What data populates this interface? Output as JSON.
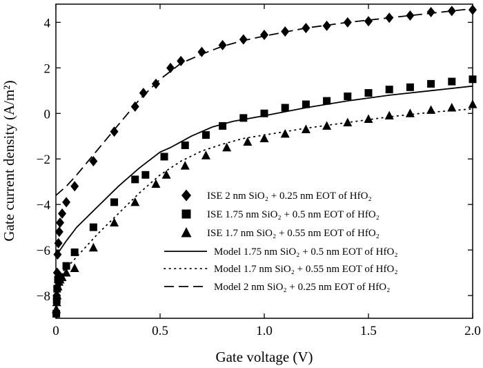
{
  "chart_data": {
    "type": "scatter",
    "xlabel": "Gate voltage (V)",
    "ylabel": "Gate current density (A/m²)",
    "xlim": [
      0,
      2.0
    ],
    "ylim": [
      -9,
      4.8
    ],
    "xticks": [
      0,
      0.5,
      1.0,
      1.5,
      2.0
    ],
    "xtick_labels": [
      "0",
      "0.5",
      "1.0",
      "1.5",
      "2.0"
    ],
    "yticks": [
      -8,
      -6,
      -4,
      -2,
      0,
      2,
      4
    ],
    "ytick_labels": [
      "−8",
      "−6",
      "−4",
      "−2",
      "0",
      "2",
      "4"
    ],
    "grid": false,
    "legend_position": "bottom-right",
    "series": [
      {
        "name": "ISE 2 nm SiO₂ + 0.25 nm EOT of HfO₂",
        "kind": "scatter",
        "marker": "diamond",
        "x": [
          0.002,
          0.004,
          0.006,
          0.008,
          0.012,
          0.016,
          0.02,
          0.03,
          0.05,
          0.09,
          0.18,
          0.28,
          0.38,
          0.42,
          0.48,
          0.55,
          0.6,
          0.7,
          0.8,
          0.9,
          1.0,
          1.1,
          1.2,
          1.3,
          1.4,
          1.5,
          1.6,
          1.7,
          1.8,
          1.9,
          2.0
        ],
        "y": [
          -8.8,
          -8.0,
          -7.0,
          -6.2,
          -5.7,
          -5.2,
          -4.8,
          -4.4,
          -3.9,
          -3.2,
          -2.1,
          -0.8,
          0.3,
          0.9,
          1.3,
          2.0,
          2.3,
          2.7,
          3.0,
          3.25,
          3.45,
          3.6,
          3.75,
          3.85,
          4.0,
          4.05,
          4.2,
          4.3,
          4.45,
          4.5,
          4.55
        ]
      },
      {
        "name": "ISE 1.75 nm SiO₂ + 0.5 nm EOT of HfO₂",
        "kind": "scatter",
        "marker": "square",
        "x": [
          0.002,
          0.004,
          0.006,
          0.01,
          0.015,
          0.02,
          0.05,
          0.09,
          0.18,
          0.28,
          0.38,
          0.43,
          0.52,
          0.62,
          0.72,
          0.8,
          0.9,
          1.0,
          1.1,
          1.2,
          1.3,
          1.4,
          1.5,
          1.6,
          1.7,
          1.8,
          1.9,
          2.0
        ],
        "y": [
          -8.8,
          -8.2,
          -7.7,
          -7.3,
          -7.2,
          -7.2,
          -6.7,
          -6.1,
          -5.0,
          -3.9,
          -2.9,
          -2.7,
          -1.9,
          -1.4,
          -0.95,
          -0.55,
          -0.2,
          0.0,
          0.25,
          0.4,
          0.55,
          0.75,
          0.9,
          1.05,
          1.15,
          1.3,
          1.4,
          1.5
        ]
      },
      {
        "name": "ISE 1.7 nm SiO₂ + 0.55 nm EOT of HfO₂",
        "kind": "scatter",
        "marker": "triangle",
        "x": [
          0.002,
          0.004,
          0.006,
          0.01,
          0.015,
          0.02,
          0.03,
          0.05,
          0.09,
          0.18,
          0.28,
          0.38,
          0.48,
          0.53,
          0.62,
          0.72,
          0.82,
          0.92,
          1.0,
          1.1,
          1.2,
          1.3,
          1.4,
          1.5,
          1.6,
          1.7,
          1.8,
          1.9,
          2.0
        ],
        "y": [
          -8.6,
          -8.3,
          -8.0,
          -7.6,
          -7.4,
          -7.3,
          -7.2,
          -7.0,
          -6.8,
          -5.9,
          -4.8,
          -3.9,
          -3.1,
          -2.7,
          -2.3,
          -1.85,
          -1.5,
          -1.25,
          -1.1,
          -0.9,
          -0.7,
          -0.55,
          -0.4,
          -0.25,
          -0.1,
          0.0,
          0.15,
          0.25,
          0.4
        ]
      },
      {
        "name": "Model 1.75 nm SiO₂ + 0.5 nm EOT of HfO₂",
        "kind": "line",
        "dash": "solid",
        "x": [
          0.0,
          0.02,
          0.05,
          0.1,
          0.2,
          0.3,
          0.4,
          0.5,
          0.55,
          0.65,
          0.75,
          0.85,
          1.0,
          1.2,
          1.4,
          1.6,
          1.8,
          2.0
        ],
        "y": [
          -6.3,
          -6.0,
          -5.6,
          -5.0,
          -4.1,
          -3.2,
          -2.4,
          -1.7,
          -1.5,
          -1.0,
          -0.6,
          -0.35,
          -0.1,
          0.25,
          0.55,
          0.8,
          1.0,
          1.2
        ]
      },
      {
        "name": "Model 1.7 nm SiO₂ + 0.55 nm EOT of HfO₂",
        "kind": "line",
        "dash": "dotted",
        "x": [
          0.0,
          0.05,
          0.1,
          0.2,
          0.3,
          0.4,
          0.5,
          0.6,
          0.7,
          0.8,
          0.9,
          1.0,
          1.2,
          1.4,
          1.6,
          1.8,
          2.0
        ],
        "y": [
          -7.2,
          -6.8,
          -6.3,
          -5.3,
          -4.4,
          -3.5,
          -2.7,
          -2.1,
          -1.65,
          -1.35,
          -1.1,
          -0.95,
          -0.65,
          -0.4,
          -0.15,
          0.05,
          0.2
        ]
      },
      {
        "name": "Model 2 nm SiO₂ + 0.25 nm EOT of HfO₂",
        "kind": "line",
        "dash": "dashed",
        "x": [
          0.0,
          0.05,
          0.1,
          0.2,
          0.3,
          0.4,
          0.5,
          0.6,
          0.7,
          0.8,
          0.9,
          1.0,
          1.2,
          1.4,
          1.6,
          1.8,
          2.0
        ],
        "y": [
          -3.6,
          -3.2,
          -2.7,
          -1.6,
          -0.5,
          0.6,
          1.5,
          2.2,
          2.6,
          2.95,
          3.2,
          3.4,
          3.75,
          4.0,
          4.2,
          4.4,
          4.6
        ]
      }
    ]
  }
}
